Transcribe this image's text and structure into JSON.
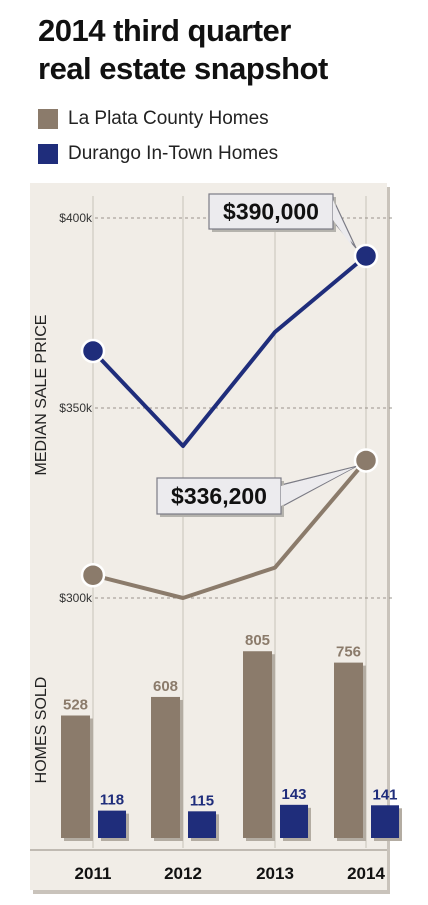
{
  "title_line1": "2014 third quarter",
  "title_line2": "real estate snapshot",
  "legend": [
    {
      "label": "La Plata County Homes",
      "color": "#8b7b6b"
    },
    {
      "label": "Durango In-Town Homes",
      "color": "#1f2d7b"
    }
  ],
  "chart_data": [
    {
      "type": "line",
      "ylabel": "MEDIAN SALE PRICE",
      "x": [
        "2011",
        "2012",
        "2013",
        "2014"
      ],
      "yticks": [
        "$400k",
        "$350k",
        "$300k"
      ],
      "ytick_values": [
        400000,
        350000,
        300000
      ],
      "ylim": [
        300000,
        400000
      ],
      "grid": true,
      "series": [
        {
          "name": "Durango In-Town Homes",
          "values": [
            365000,
            340000,
            370000,
            390000
          ],
          "color": "#1f2d7b"
        },
        {
          "name": "La Plata County Homes",
          "values": [
            306000,
            300000,
            308000,
            336200
          ],
          "color": "#8b7b6b"
        }
      ],
      "annotations": [
        {
          "text": "$390,000",
          "series": "Durango In-Town Homes",
          "x": "2014"
        },
        {
          "text": "$336,200",
          "series": "La Plata County Homes",
          "x": "2014"
        }
      ]
    },
    {
      "type": "bar",
      "ylabel": "HOMES SOLD",
      "categories": [
        "2011",
        "2012",
        "2013",
        "2014"
      ],
      "series": [
        {
          "name": "La Plata County Homes",
          "values": [
            528,
            608,
            805,
            756
          ],
          "color": "#8b7b6b"
        },
        {
          "name": "Durango In-Town Homes",
          "values": [
            118,
            115,
            143,
            141
          ],
          "color": "#1f2d7b"
        }
      ]
    }
  ]
}
